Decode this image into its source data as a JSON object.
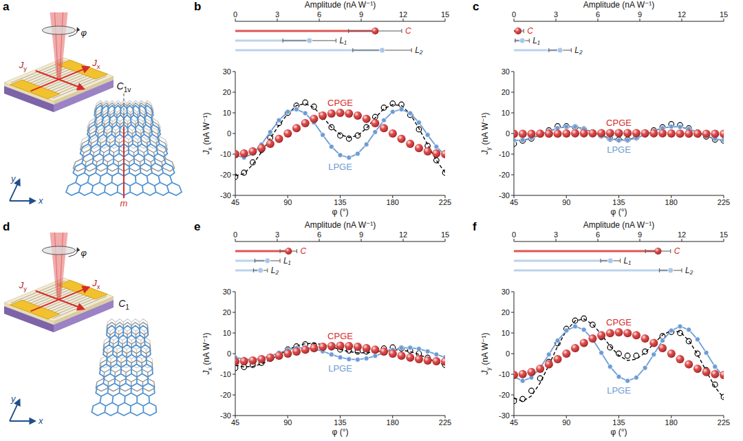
{
  "chart_data": [
    {
      "type": "bar",
      "orientation": "horizontal",
      "panel_label": "b",
      "xlabel": "Amplitude (nA W⁻¹)",
      "categories": [
        "C",
        "L₁",
        "L₂"
      ],
      "values": [
        10,
        5.3,
        10.5
      ],
      "errors": [
        1.9,
        1.9,
        2.1
      ],
      "colors": [
        "#d62b2b",
        "#a9c7e8",
        "#a9c7e8"
      ],
      "xlim": [
        0,
        15
      ],
      "xticks": [
        0,
        3,
        6,
        9,
        12,
        15
      ],
      "tick_labels": "x"
    },
    {
      "type": "line",
      "xlabel": "φ (°)",
      "ylabel": {
        "symbol": "J",
        "subscript": "x",
        "unit": "(nA W⁻¹)"
      },
      "x": [
        45,
        52.5,
        60,
        67.5,
        75,
        82.5,
        90,
        97.5,
        105,
        112.5,
        120,
        127.5,
        135,
        142.5,
        150,
        157.5,
        165,
        172.5,
        180,
        187.5,
        195,
        202.5,
        210,
        217.5,
        225
      ],
      "xlim": [
        45,
        225
      ],
      "xticks": [
        45,
        90,
        135,
        180,
        225
      ],
      "ylim": [
        -30,
        30
      ],
      "yticks": [
        -30,
        -20,
        -10,
        0,
        10,
        20,
        30
      ],
      "series": [
        {
          "name": "CPGE",
          "color": "#d62b2b",
          "marker": "sphere",
          "values": [
            -10,
            -9.7,
            -8.7,
            -7.1,
            -5,
            -2.6,
            0,
            2.6,
            5,
            7.1,
            8.7,
            9.7,
            10,
            9.7,
            8.7,
            7.1,
            5,
            2.6,
            0,
            -2.6,
            -5,
            -7.1,
            -8.7,
            -9.7,
            -10
          ]
        },
        {
          "name": "LPGE",
          "color": "#6d9cd4",
          "marker": "circle",
          "line_style": "solid",
          "values": [
            -10.5,
            -11.7,
            -9.8,
            -5.3,
            0.7,
            6.4,
            10.5,
            11.7,
            9.8,
            5.3,
            -0.7,
            -6.4,
            -10.5,
            -11.7,
            -9.8,
            -5.3,
            0.7,
            6.4,
            10.5,
            11.7,
            9.8,
            5.3,
            -0.7,
            -6.4,
            -10.5
          ]
        },
        {
          "color": "#000000",
          "marker": "open-circle",
          "values": [
            -21,
            -19,
            -14,
            -8,
            -2,
            5,
            10,
            13.5,
            15,
            13,
            8,
            3,
            -1,
            -2.5,
            -1,
            3,
            8,
            12.5,
            14.5,
            14,
            9,
            2,
            -6,
            -13,
            -19
          ]
        },
        {
          "color": "#000000",
          "line_style": "dashed",
          "values": [
            -20.5,
            -19.5,
            -15,
            -9,
            -2.5,
            4,
            9.5,
            13.5,
            14.5,
            12.5,
            8,
            3,
            -0.5,
            -2,
            -1,
            2.5,
            7.5,
            12,
            14,
            13.5,
            9.5,
            2.5,
            -5.5,
            -13,
            -19
          ]
        }
      ]
    },
    {
      "type": "bar",
      "orientation": "horizontal",
      "panel_label": "c",
      "xlabel": "Amplitude (nA W⁻¹)",
      "categories": [
        "C",
        "L₁",
        "L₂"
      ],
      "values": [
        0.3,
        0.6,
        3.3
      ],
      "errors": [
        0.4,
        0.5,
        0.8
      ],
      "colors": [
        "#d62b2b",
        "#a9c7e8",
        "#a9c7e8"
      ],
      "xlim": [
        0,
        15
      ],
      "xticks": [
        0,
        3,
        6,
        9,
        12,
        15
      ],
      "tick_labels": "x"
    },
    {
      "type": "line",
      "xlabel": "φ (°)",
      "ylabel": {
        "symbol": "J",
        "subscript": "y",
        "unit": "(nA W⁻¹)"
      },
      "x": [
        45,
        52.5,
        60,
        67.5,
        75,
        82.5,
        90,
        97.5,
        105,
        112.5,
        120,
        127.5,
        135,
        142.5,
        150,
        157.5,
        165,
        172.5,
        180,
        187.5,
        195,
        202.5,
        210,
        217.5,
        225
      ],
      "xlim": [
        45,
        225
      ],
      "xticks": [
        45,
        90,
        135,
        180,
        225
      ],
      "ylim": [
        -30,
        30
      ],
      "yticks": [
        -30,
        -20,
        -10,
        0,
        10,
        20,
        30
      ],
      "series": [
        {
          "name": "CPGE",
          "color": "#d62b2b",
          "marker": "sphere",
          "values": [
            -0.2,
            -0.2,
            -0.2,
            -0.1,
            -0.1,
            -0.1,
            0,
            0.1,
            0.1,
            0.1,
            0.2,
            0.2,
            0.2,
            0.2,
            0.2,
            0.1,
            0.1,
            0.1,
            0,
            -0.1,
            -0.1,
            -0.1,
            -0.2,
            -0.2,
            -0.2
          ]
        },
        {
          "name": "LPGE",
          "color": "#6d9cd4",
          "marker": "circle",
          "line_style": "solid",
          "values": [
            -3.3,
            -3.2,
            -2.2,
            -0.6,
            1.1,
            2.6,
            3.3,
            3.2,
            2.2,
            0.6,
            -1.1,
            -2.6,
            -3.3,
            -3.2,
            -2.2,
            -0.6,
            1.1,
            2.6,
            3.3,
            3.2,
            2.2,
            0.6,
            -1.1,
            -2.6,
            -3.3
          ]
        },
        {
          "color": "#000000",
          "marker": "open-circle",
          "values": [
            -5,
            -3.5,
            -2.5,
            -0.5,
            1.5,
            3.5,
            3.5,
            3,
            2,
            0.5,
            -1,
            -2.5,
            -3,
            -3,
            -2,
            -0.5,
            1.5,
            3,
            4.5,
            4,
            2.5,
            0.5,
            -1.5,
            -3,
            -3.5
          ]
        },
        {
          "color": "#000000",
          "line_style": "dashed",
          "values": [
            -3.5,
            -3.4,
            -2.4,
            -0.7,
            1,
            2.5,
            3.3,
            3.3,
            2.3,
            0.7,
            -0.9,
            -2.4,
            -3.1,
            -3,
            -2,
            -0.5,
            1.2,
            2.7,
            3.3,
            3.1,
            2.1,
            0.5,
            -1.3,
            -2.8,
            -3.5
          ]
        }
      ]
    },
    {
      "type": "bar",
      "orientation": "horizontal",
      "panel_label": "e",
      "xlabel": "Amplitude (nA W⁻¹)",
      "categories": [
        "C",
        "L₁",
        "L₂"
      ],
      "values": [
        3.8,
        2.3,
        1.8
      ],
      "errors": [
        0.6,
        0.9,
        0.5
      ],
      "colors": [
        "#d62b2b",
        "#a9c7e8",
        "#a9c7e8"
      ],
      "xlim": [
        0,
        15
      ],
      "xticks": [
        0,
        3,
        6,
        9,
        12,
        15
      ],
      "tick_labels": "x"
    },
    {
      "type": "line",
      "xlabel": "φ (°)",
      "ylabel": {
        "symbol": "J",
        "subscript": "x",
        "unit": "(nA W⁻¹)"
      },
      "x": [
        45,
        52.5,
        60,
        67.5,
        75,
        82.5,
        90,
        97.5,
        105,
        112.5,
        120,
        127.5,
        135,
        142.5,
        150,
        157.5,
        165,
        172.5,
        180,
        187.5,
        195,
        202.5,
        210,
        217.5,
        225
      ],
      "xlim": [
        45,
        225
      ],
      "xticks": [
        45,
        90,
        135,
        180,
        225
      ],
      "ylim": [
        -30,
        30
      ],
      "yticks": [
        -30,
        -20,
        -10,
        0,
        10,
        20,
        30
      ],
      "series": [
        {
          "name": "CPGE",
          "color": "#d62b2b",
          "marker": "sphere",
          "values": [
            -3.8,
            -3.7,
            -3.3,
            -2.7,
            -1.9,
            -1,
            0,
            1,
            1.9,
            2.7,
            3.3,
            3.7,
            3.8,
            3.7,
            3.3,
            2.7,
            1.9,
            1,
            0,
            -1,
            -1.9,
            -2.7,
            -3.3,
            -3.7,
            -3.8
          ]
        },
        {
          "name": "LPGE",
          "color": "#6d9cd4",
          "marker": "circle",
          "line_style": "solid",
          "values": [
            -1.8,
            -2.7,
            -2.9,
            -2.3,
            -1.1,
            0.4,
            1.8,
            2.7,
            2.9,
            2.3,
            1.1,
            -0.4,
            -1.8,
            -2.7,
            -2.9,
            -2.3,
            -1.1,
            0.4,
            1.8,
            2.7,
            2.9,
            2.3,
            1.1,
            -0.4,
            -1.8
          ]
        },
        {
          "color": "#000000",
          "marker": "open-circle",
          "values": [
            -7,
            -6.5,
            -5.5,
            -4.5,
            -2.5,
            -0.5,
            2,
            3.5,
            4.5,
            4,
            3.5,
            3,
            2,
            1.5,
            1,
            1,
            1.5,
            2.5,
            3,
            2.5,
            1.5,
            0,
            -2,
            -4,
            -5.5
          ]
        },
        {
          "color": "#000000",
          "line_style": "dashed",
          "values": [
            -5.6,
            -6.4,
            -6.2,
            -5,
            -3,
            -0.6,
            1.8,
            3.7,
            4.8,
            5,
            4.4,
            3.3,
            2,
            1,
            0.4,
            0.4,
            0.8,
            1.4,
            1.8,
            1.7,
            1,
            -0.4,
            -2.2,
            -4.1,
            -5.6
          ]
        }
      ]
    },
    {
      "type": "bar",
      "orientation": "horizontal",
      "panel_label": "f",
      "xlabel": "Amplitude (nA W⁻¹)",
      "categories": [
        "C",
        "L₁",
        "L₂"
      ],
      "values": [
        10.3,
        6.9,
        11.2
      ],
      "errors": [
        0.9,
        0.7,
        0.8
      ],
      "colors": [
        "#d62b2b",
        "#a9c7e8",
        "#a9c7e8"
      ],
      "xlim": [
        0,
        15
      ],
      "xticks": [
        0,
        3,
        6,
        9,
        12,
        15
      ],
      "tick_labels": "x"
    },
    {
      "type": "line",
      "xlabel": "φ (°)",
      "ylabel": {
        "symbol": "J",
        "subscript": "y",
        "unit": "(nA W⁻¹)"
      },
      "x": [
        45,
        52.5,
        60,
        67.5,
        75,
        82.5,
        90,
        97.5,
        105,
        112.5,
        120,
        127.5,
        135,
        142.5,
        150,
        157.5,
        165,
        172.5,
        180,
        187.5,
        195,
        202.5,
        210,
        217.5,
        225
      ],
      "xlim": [
        45,
        225
      ],
      "xticks": [
        45,
        90,
        135,
        180,
        225
      ],
      "ylim": [
        -30,
        30
      ],
      "yticks": [
        -30,
        -20,
        -10,
        0,
        10,
        20,
        30
      ],
      "series": [
        {
          "name": "CPGE",
          "color": "#d62b2b",
          "marker": "sphere",
          "values": [
            -10.3,
            -9.9,
            -8.9,
            -7.3,
            -5.2,
            -2.7,
            0,
            2.7,
            5.2,
            7.3,
            8.9,
            9.9,
            10.3,
            9.9,
            8.9,
            7.3,
            5.2,
            2.7,
            0,
            -2.7,
            -5.2,
            -7.3,
            -8.9,
            -9.9,
            -10.3
          ]
        },
        {
          "name": "LPGE",
          "color": "#6d9cd4",
          "marker": "circle",
          "line_style": "solid",
          "values": [
            -11.2,
            -13.2,
            -11.6,
            -6.9,
            -0.4,
            6.3,
            11.2,
            13.2,
            11.6,
            6.9,
            0.4,
            -6.3,
            -11.2,
            -13.2,
            -11.6,
            -6.9,
            -0.4,
            6.3,
            11.2,
            13.2,
            11.6,
            6.9,
            0.4,
            -6.3,
            -11.2
          ]
        },
        {
          "color": "#000000",
          "marker": "open-circle",
          "values": [
            -23,
            -22,
            -18,
            -12,
            -4,
            5,
            12,
            16,
            17,
            14,
            8,
            3,
            0,
            -1,
            -1,
            1,
            5,
            8.5,
            10.5,
            10,
            6,
            0,
            -8,
            -15,
            -21
          ]
        },
        {
          "color": "#000000",
          "line_style": "dashed",
          "values": [
            -21.5,
            -23.1,
            -20.5,
            -14.2,
            -5.6,
            3.6,
            11.2,
            15.9,
            16.8,
            14.2,
            9.3,
            3.6,
            -0.9,
            -3.3,
            -2.7,
            0.4,
            4.8,
            9,
            11.2,
            10.5,
            6.4,
            -0.4,
            -8.5,
            -16.2,
            -21.5
          ]
        }
      ]
    }
  ],
  "diagrams": [
    {
      "panel_label": "a",
      "angle": "φ",
      "current_x": {
        "symbol": "J",
        "subscript": "x"
      },
      "current_y": {
        "symbol": "J",
        "subscript": "y"
      },
      "symmetry": {
        "symbol": "C",
        "subscript": "1v"
      },
      "mirror": "m",
      "axis_x": "x",
      "axis_y": "y"
    },
    {
      "panel_label": "d",
      "angle": "φ",
      "current_x": {
        "symbol": "J",
        "subscript": "x"
      },
      "current_y": {
        "symbol": "J",
        "subscript": "y"
      },
      "symmetry": {
        "symbol": "C",
        "subscript": "1"
      },
      "axis_x": "x",
      "axis_y": "y"
    }
  ]
}
